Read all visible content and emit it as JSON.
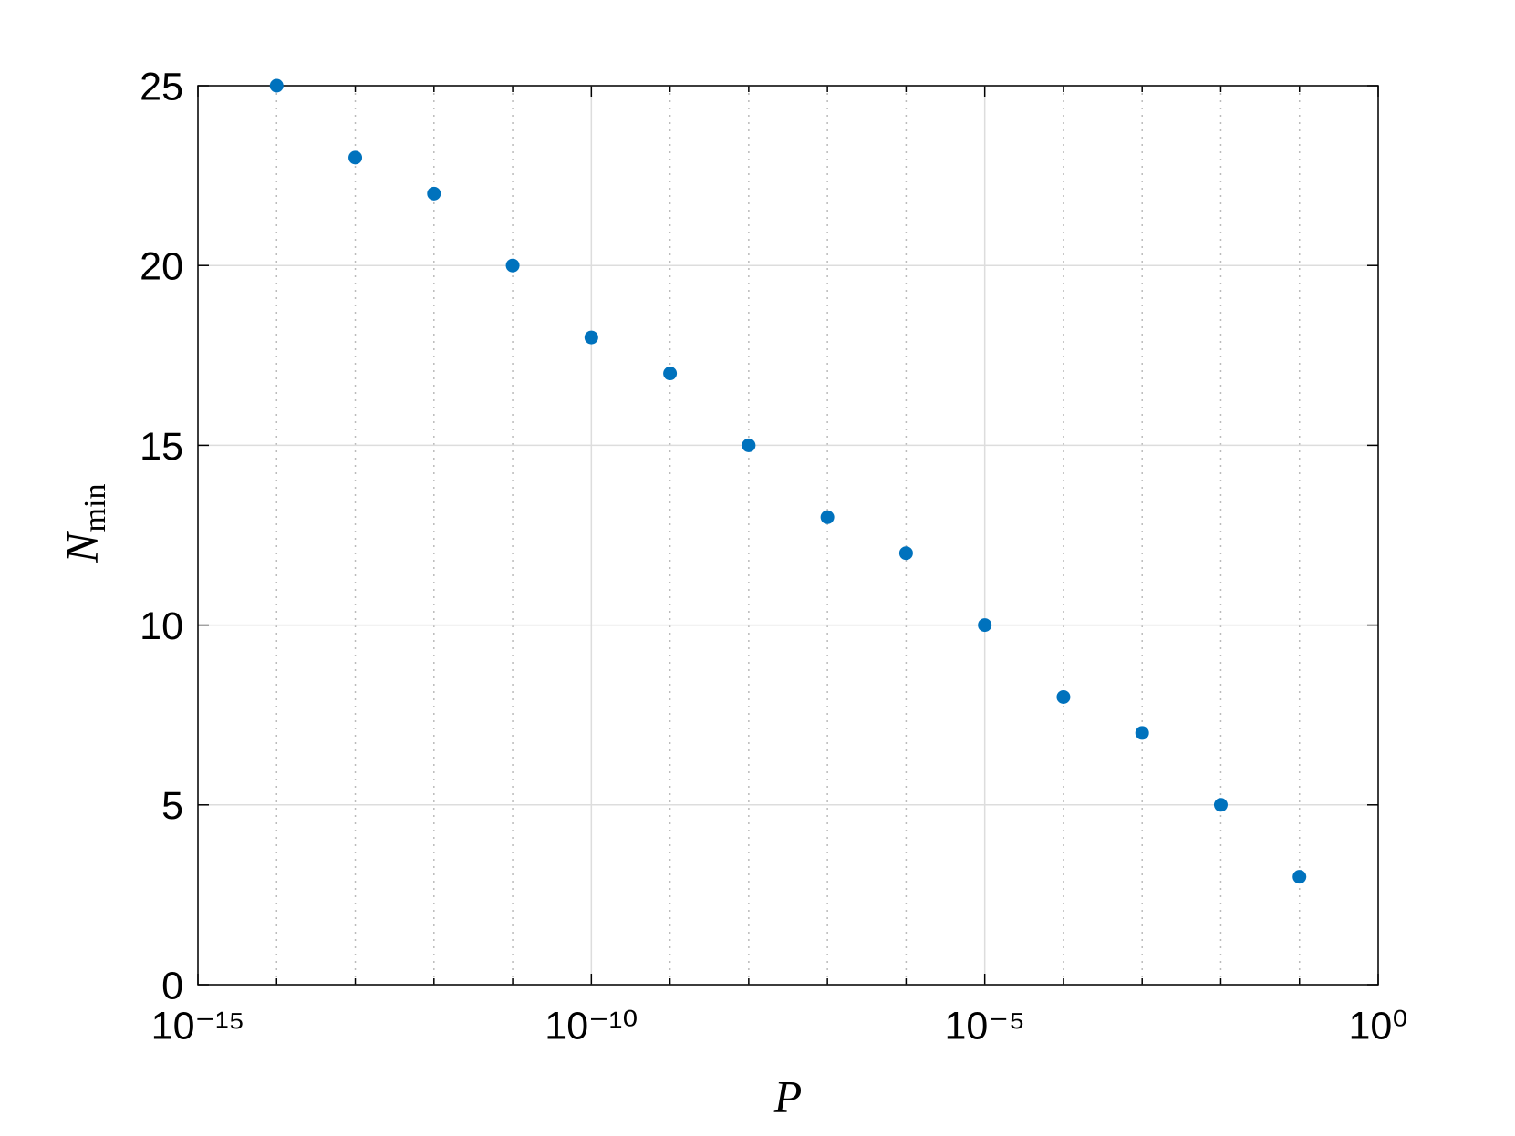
{
  "chart_data": {
    "type": "scatter",
    "xlabel": "P",
    "ylabel": "N",
    "ylabel_sub": "min",
    "x": [
      1e-14,
      1e-13,
      1e-12,
      1e-11,
      1e-10,
      1e-09,
      1e-08,
      1e-07,
      1e-06,
      1e-05,
      0.0001,
      0.001,
      0.01,
      0.1
    ],
    "values": [
      25,
      23,
      22,
      20,
      18,
      17,
      15,
      13,
      12,
      10,
      8,
      7,
      5,
      3
    ],
    "color": "#0072bd",
    "xscale": "log",
    "xlim": [
      1e-15,
      1
    ],
    "xticks": [
      {
        "value": 1e-15,
        "label": "10⁻¹⁵"
      },
      {
        "value": 1e-10,
        "label": "10⁻¹⁰"
      },
      {
        "value": 1e-05,
        "label": "10⁻⁵"
      },
      {
        "value": 1,
        "label": "10⁰"
      }
    ],
    "xminorticks": [
      1e-14,
      1e-13,
      1e-12,
      1e-11,
      1e-09,
      1e-08,
      1e-07,
      1e-06,
      0.0001,
      0.001,
      0.01,
      0.1
    ],
    "ylim": [
      0,
      25
    ],
    "yticks": [
      0,
      5,
      10,
      15,
      20,
      25
    ],
    "grid": true
  }
}
